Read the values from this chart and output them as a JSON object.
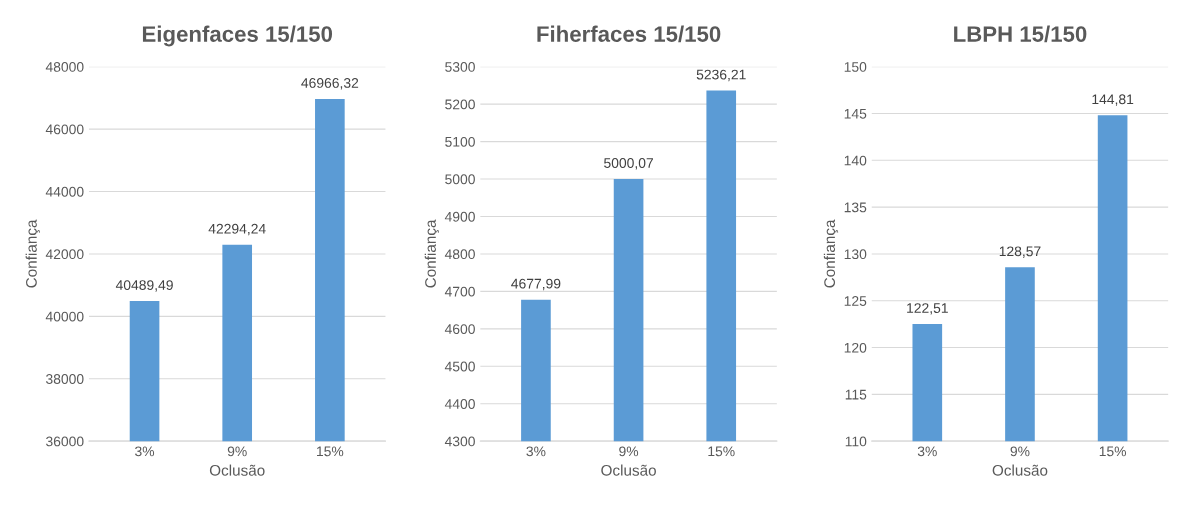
{
  "chart_data": [
    {
      "type": "bar",
      "title": "Eigenfaces 15/150",
      "xlabel": "Oclusão",
      "ylabel": "Confiança",
      "categories": [
        "3%",
        "9%",
        "15%"
      ],
      "values": [
        40489.49,
        42294.24,
        46966.32
      ],
      "value_labels": [
        "40489,49",
        "42294,24",
        "46966,32"
      ],
      "color": "#5b9bd5",
      "ylim": [
        36000,
        48000
      ],
      "yticks": [
        36000,
        38000,
        40000,
        42000,
        44000,
        46000,
        48000
      ],
      "grid": "y"
    },
    {
      "type": "bar",
      "title": "Fiherfaces 15/150",
      "xlabel": "Oclusão",
      "ylabel": "Confiança",
      "categories": [
        "3%",
        "9%",
        "15%"
      ],
      "values": [
        4677.99,
        5000.07,
        5236.21
      ],
      "value_labels": [
        "4677,99",
        "5000,07",
        "5236,21"
      ],
      "color": "#5b9bd5",
      "ylim": [
        4300,
        5300
      ],
      "yticks": [
        4300,
        4400,
        4500,
        4600,
        4700,
        4800,
        4900,
        5000,
        5100,
        5200,
        5300
      ],
      "grid": "y"
    },
    {
      "type": "bar",
      "title": "LBPH 15/150",
      "xlabel": "Oclusão",
      "ylabel": "Confiança",
      "categories": [
        "3%",
        "9%",
        "15%"
      ],
      "values": [
        122.51,
        128.57,
        144.81
      ],
      "value_labels": [
        "122,51",
        "128,57",
        "144,81"
      ],
      "color": "#5b9bd5",
      "ylim": [
        110,
        150
      ],
      "yticks": [
        110,
        115,
        120,
        125,
        130,
        135,
        140,
        145,
        150
      ],
      "grid": "y"
    }
  ]
}
